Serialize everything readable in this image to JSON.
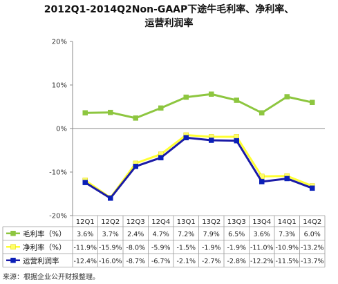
{
  "chart_data": {
    "type": "line",
    "title_line1": "2012Q1-2014Q2Non-GAAP下途牛毛利率、净利率、",
    "title_line2": "运营利润率",
    "categories": [
      "12Q1",
      "12Q2",
      "12Q3",
      "12Q4",
      "13Q1",
      "13Q2",
      "13Q3",
      "13Q4",
      "14Q1",
      "14Q2"
    ],
    "ylim": [
      -20,
      20
    ],
    "yticks": [
      20,
      10,
      0,
      -10,
      -20
    ],
    "ytick_labels": [
      "20%",
      "10%",
      "0%",
      "-10%",
      "-20%"
    ],
    "series": [
      {
        "name": "毛利率（%）",
        "color": "#8dc63f",
        "marker_color": "#8dc63f",
        "values": [
          3.6,
          3.7,
          2.4,
          4.7,
          7.2,
          7.9,
          6.5,
          3.6,
          7.3,
          6.0
        ],
        "labels": [
          "3.6%",
          "3.7%",
          "2.4%",
          "4.7%",
          "7.2%",
          "7.9%",
          "6.5%",
          "3.6%",
          "7.3%",
          "6.0%"
        ]
      },
      {
        "name": "净利率（%）",
        "color": "#ffff33",
        "marker_color": "#ffff66",
        "values": [
          -11.9,
          -15.9,
          -8.0,
          -5.9,
          -1.5,
          -1.9,
          -1.9,
          -11.0,
          -10.9,
          -13.2
        ],
        "labels": [
          "-11.9%",
          "-15.9%",
          "-8.0%",
          "-5.9%",
          "-1.5%",
          "-1.9%",
          "-1.9%",
          "-11.0%",
          "-10.9%",
          "-13.2%"
        ]
      },
      {
        "name": "运营利润率",
        "color": "#1a1aa6",
        "marker_color": "#0a1fb8",
        "values": [
          -12.4,
          -16.0,
          -8.7,
          -6.7,
          -2.1,
          -2.7,
          -2.8,
          -12.2,
          -11.5,
          -13.7
        ],
        "labels": [
          "-12.4%",
          "-16.0%",
          "-8.7%",
          "-6.7%",
          "-2.1%",
          "-2.7%",
          "-2.8%",
          "-12.2%",
          "-11.5%",
          "-13.7%"
        ]
      }
    ],
    "legend": "table-bottom",
    "grid": false
  },
  "source_note": "来源：根据企业公开财报整理。"
}
